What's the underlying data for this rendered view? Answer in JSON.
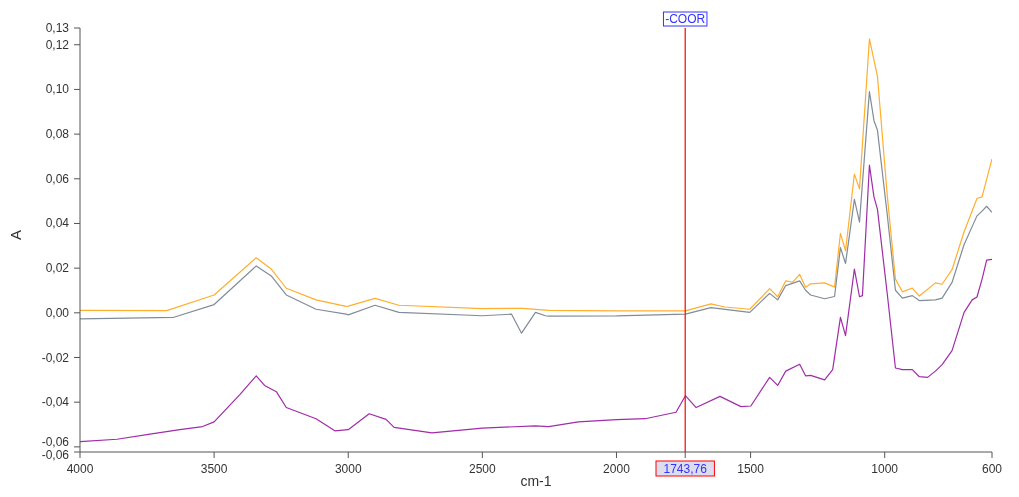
{
  "chart_data": {
    "type": "line",
    "xlabel": "cm-1",
    "ylabel": "A",
    "xlim": [
      4000,
      600
    ],
    "xticks": [
      4000,
      3500,
      3000,
      2500,
      2000,
      {
        "value": 1743.76,
        "label": "1743,76"
      },
      1500,
      1000,
      600
    ],
    "ylim": [
      -0.0623,
      0.1275
    ],
    "yticks": [
      {
        "value": -0.0623,
        "label": "-0,06"
      },
      {
        "value": -0.06,
        "label": "-0,06"
      },
      {
        "value": -0.04,
        "label": "-0,04"
      },
      {
        "value": -0.02,
        "label": "-0,02"
      },
      {
        "value": 0,
        "label": "0,00"
      },
      {
        "value": 0.02,
        "label": "0,02"
      },
      {
        "value": 0.04,
        "label": "0,04"
      },
      {
        "value": 0.06,
        "label": "0,06"
      },
      {
        "value": 0.08,
        "label": "0,08"
      },
      {
        "value": 0.1,
        "label": "0,10"
      },
      {
        "value": 0.12,
        "label": "0,12"
      },
      {
        "value": 0.1275,
        "label": "0,13"
      }
    ],
    "grid": false,
    "legend": false,
    "marker": "none",
    "line_style": "solid",
    "ref_lines": [
      {
        "axis": "x",
        "value": 1743.76,
        "label": "-COOR",
        "color": "#ff0000"
      }
    ],
    "series": [
      {
        "color": "#ffae2e",
        "x": [
          4000,
          3677,
          3500,
          3343,
          3287,
          3231,
          3120,
          3008,
          3000,
          2900,
          2811,
          2500,
          2350,
          2253,
          2000,
          1743,
          1648,
          1596,
          1503,
          1429,
          1399,
          1369,
          1343,
          1317,
          1295,
          1276,
          1224,
          1187,
          1165,
          1146,
          1113,
          1094,
          1057,
          1027,
          990,
          960,
          934,
          897,
          871,
          811,
          786,
          749,
          704,
          656,
          637,
          600
        ],
        "values": [
          0.0011,
          0.001,
          0.008,
          0.0247,
          0.0196,
          0.011,
          0.0058,
          0.0029,
          0.003,
          0.0065,
          0.0034,
          0.0019,
          0.002,
          0.0011,
          0.0009,
          0.0009,
          0.004,
          0.0026,
          0.0016,
          0.0108,
          0.0072,
          0.0143,
          0.0137,
          0.0172,
          0.0115,
          0.013,
          0.0134,
          0.0115,
          0.0356,
          0.0278,
          0.0621,
          0.0555,
          0.1226,
          0.1058,
          0.0519,
          0.0151,
          0.0094,
          0.0111,
          0.0075,
          0.0134,
          0.0128,
          0.0193,
          0.0363,
          0.0512,
          0.0519,
          0.0689
        ]
      },
      {
        "color": "#808c98",
        "x": [
          4000,
          3650,
          3500,
          3343,
          3287,
          3231,
          3120,
          3008,
          3000,
          2900,
          2811,
          2500,
          2391,
          2354,
          2302,
          2265,
          2253,
          2000,
          1743,
          1648,
          1503,
          1429,
          1399,
          1369,
          1317,
          1295,
          1276,
          1224,
          1187,
          1165,
          1146,
          1113,
          1094,
          1057,
          1040,
          1027,
          990,
          960,
          934,
          897,
          871,
          811,
          786,
          749,
          704,
          656,
          637,
          620,
          600
        ],
        "values": [
          -0.0027,
          -0.002,
          0.0037,
          0.021,
          0.0165,
          0.008,
          0.0016,
          -0.0006,
          -0.0009,
          0.0034,
          0.0002,
          -0.0013,
          -0.0006,
          -0.0091,
          0.0002,
          -0.0013,
          -0.0015,
          -0.0014,
          -0.0006,
          0.0023,
          0.0002,
          0.0087,
          0.0058,
          0.0122,
          0.0143,
          0.0101,
          0.008,
          0.0063,
          0.0073,
          0.0292,
          0.0221,
          0.0508,
          0.0406,
          0.099,
          0.086,
          0.0817,
          0.0434,
          0.0101,
          0.0066,
          0.0077,
          0.0055,
          0.0058,
          0.0066,
          0.0136,
          0.0306,
          0.0434,
          0.0455,
          0.0477,
          0.045
        ]
      },
      {
        "color": "#a02ca8",
        "x": [
          4000,
          3862,
          3733,
          3628,
          3543,
          3500,
          3405,
          3343,
          3312,
          3268,
          3231,
          3120,
          3050,
          3000,
          2922,
          2859,
          2829,
          2688,
          2500,
          2302,
          2253,
          2142,
          2000,
          1893,
          1778,
          1743,
          1703,
          1614,
          1536,
          1499,
          1429,
          1399,
          1369,
          1317,
          1295,
          1276,
          1224,
          1194,
          1165,
          1146,
          1113,
          1094,
          1083,
          1057,
          1040,
          1027,
          990,
          960,
          934,
          897,
          871,
          840,
          811,
          786,
          749,
          704,
          674,
          656,
          637,
          620,
          600
        ],
        "values": [
          -0.0577,
          -0.0566,
          -0.0542,
          -0.0523,
          -0.0509,
          -0.0488,
          -0.0367,
          -0.0282,
          -0.0325,
          -0.0353,
          -0.0424,
          -0.0474,
          -0.0528,
          -0.0523,
          -0.0452,
          -0.0477,
          -0.0513,
          -0.0537,
          -0.0516,
          -0.0506,
          -0.0509,
          -0.0488,
          -0.0478,
          -0.0474,
          -0.0445,
          -0.0371,
          -0.0424,
          -0.0374,
          -0.042,
          -0.0417,
          -0.0289,
          -0.0325,
          -0.0261,
          -0.023,
          -0.0282,
          -0.028,
          -0.03,
          -0.0254,
          -0.002,
          -0.0102,
          0.0196,
          0.0072,
          0.0077,
          0.0661,
          0.0519,
          0.0463,
          0.008,
          -0.0247,
          -0.0254,
          -0.0254,
          -0.0286,
          -0.0289,
          -0.0261,
          -0.0232,
          -0.0169,
          0.0002,
          0.0058,
          0.0071,
          0.0151,
          0.0236,
          0.0239
        ]
      }
    ]
  }
}
